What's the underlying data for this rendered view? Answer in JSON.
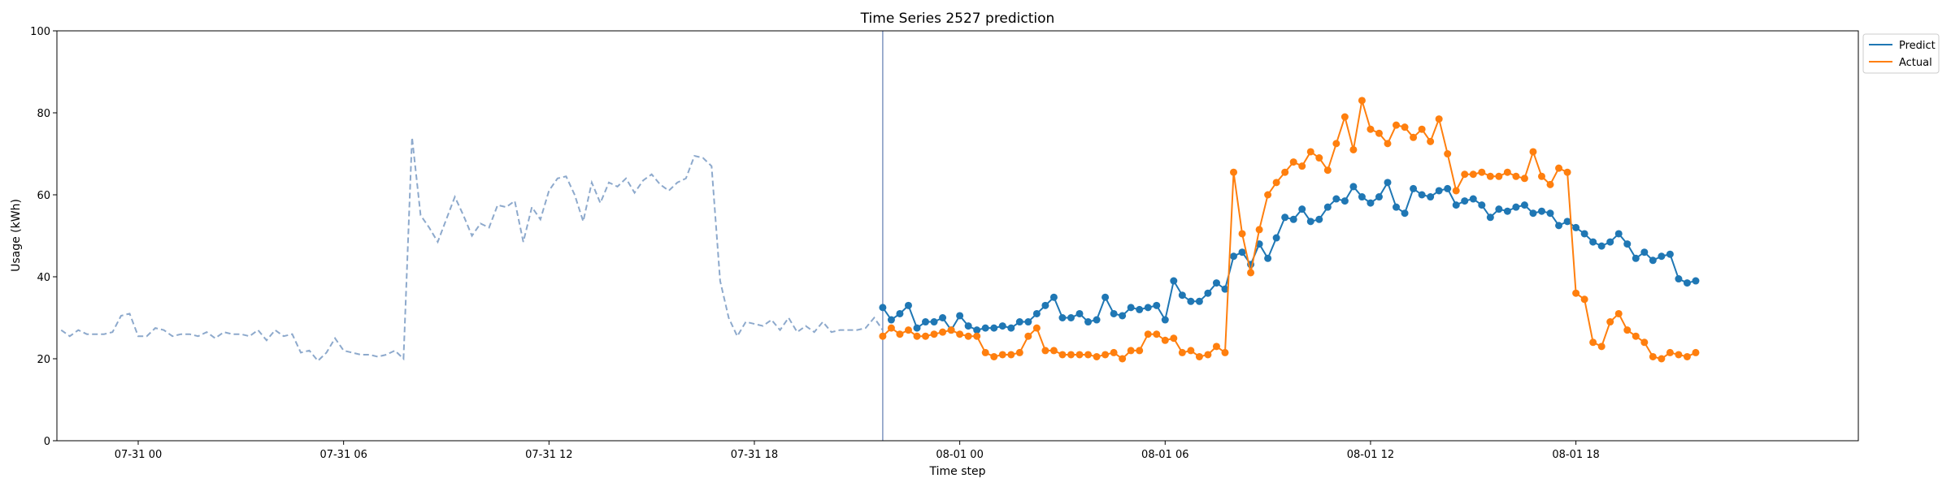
{
  "chart_data": {
    "type": "line",
    "title": "Time Series 2527 prediction",
    "xlabel": "Time step",
    "ylabel": "Usage (kWh)",
    "ylim": [
      0,
      100
    ],
    "yticks": [
      0,
      20,
      40,
      60,
      80,
      100
    ],
    "xlim": [
      -9.5,
      201
    ],
    "xticks": [
      {
        "x": 0,
        "label": "07-31 00"
      },
      {
        "x": 24,
        "label": "07-31 06"
      },
      {
        "x": 48,
        "label": "07-31 12"
      },
      {
        "x": 72,
        "label": "07-31 18"
      },
      {
        "x": 96,
        "label": "08-01 00"
      },
      {
        "x": 120,
        "label": "08-01 06"
      },
      {
        "x": 144,
        "label": "08-01 12"
      },
      {
        "x": 168,
        "label": "08-01 18"
      }
    ],
    "vline_x": 87,
    "legend_position": "top-right",
    "colors": {
      "predict": "#1f77b4",
      "actual": "#ff7f0e",
      "history": "#8da9cc",
      "vline": "#7f96c0"
    },
    "history": {
      "x_start": -9,
      "values": [
        27,
        25.5,
        27,
        26,
        26,
        26,
        26.5,
        30.5,
        31,
        25.5,
        25.5,
        27.5,
        27,
        25.5,
        26,
        26,
        25.5,
        26.5,
        25,
        26.5,
        26,
        26,
        25.5,
        27,
        24.5,
        27,
        25.5,
        26,
        21.5,
        22,
        19.5,
        21.5,
        25,
        22,
        21.5,
        21,
        21,
        20.5,
        21,
        22,
        20,
        74,
        55,
        52,
        48.5,
        54,
        59.5,
        55,
        50,
        53,
        52,
        57.5,
        57,
        58.5,
        48.5,
        57,
        54,
        61,
        64,
        64.5,
        60,
        53.5,
        63,
        58,
        63,
        62,
        64,
        60.5,
        63.5,
        65,
        62.5,
        61,
        63,
        64,
        69.5,
        69,
        67,
        39,
        30,
        25.5,
        29,
        28.5,
        28,
        29.5,
        27,
        30,
        26.5,
        28,
        26.5,
        29,
        26.5,
        27,
        27,
        27,
        27.5,
        30,
        27
      ]
    },
    "series": [
      {
        "name": "Predict",
        "x_start": 87,
        "values": [
          32.5,
          29.5,
          31,
          33,
          27.5,
          29,
          29,
          30,
          27,
          30.5,
          28,
          27,
          27.5,
          27.5,
          28,
          27.5,
          29,
          29,
          31,
          33,
          35,
          30,
          30,
          31,
          29,
          29.5,
          35,
          31,
          30.5,
          32.5,
          32,
          32.5,
          33,
          29.5,
          39,
          35.5,
          34,
          34,
          36,
          38.5,
          37,
          45,
          46,
          43,
          48,
          44.5,
          49.5,
          54.5,
          54,
          56.5,
          53.5,
          54,
          57,
          59,
          58.5,
          62,
          59.5,
          58,
          59.5,
          63,
          57,
          55.5,
          61.5,
          60,
          59.5,
          61,
          61.5,
          57.5,
          58.5,
          59,
          57.5,
          54.5,
          56.5,
          56,
          57,
          57.5,
          55.5,
          56,
          55.5,
          52.5,
          53.5,
          52,
          50.5,
          48.5,
          47.5,
          48.5,
          50.5,
          48,
          44.5,
          46,
          44,
          45,
          45.5,
          39.5,
          38.5,
          39
        ]
      },
      {
        "name": "Actual",
        "x_start": 87,
        "values": [
          25.5,
          27.5,
          26,
          27,
          25.5,
          25.5,
          26,
          26.5,
          27,
          26,
          25.5,
          25.5,
          21.5,
          20.5,
          21,
          21,
          21.5,
          25.5,
          27.5,
          22,
          22,
          21,
          21,
          21,
          21,
          20.5,
          21,
          21.5,
          20,
          22,
          22,
          26,
          26,
          24.5,
          25,
          21.5,
          22,
          20.5,
          21,
          23,
          21.5,
          65.5,
          50.5,
          41,
          51.5,
          60,
          63,
          65.5,
          68,
          67,
          70.5,
          69,
          66,
          72.5,
          79,
          71,
          83,
          76,
          75,
          72.5,
          77,
          76.5,
          74,
          76,
          73,
          78.5,
          70,
          61,
          65,
          65,
          65.5,
          64.5,
          64.5,
          65.5,
          64.5,
          64,
          70.5,
          64.5,
          62.5,
          66.5,
          65.5,
          36,
          34.5,
          24,
          23,
          29,
          31,
          27,
          25.5,
          24,
          20.5,
          20,
          21.5,
          21,
          20.5,
          21.5
        ]
      }
    ]
  }
}
